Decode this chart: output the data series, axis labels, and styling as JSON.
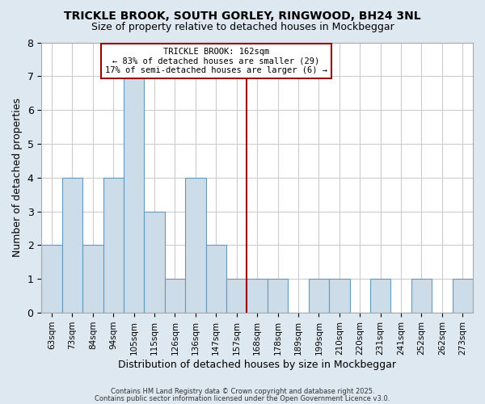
{
  "title1": "TRICKLE BROOK, SOUTH GORLEY, RINGWOOD, BH24 3NL",
  "title2": "Size of property relative to detached houses in Mockbeggar",
  "xlabel": "Distribution of detached houses by size in Mockbeggar",
  "ylabel": "Number of detached properties",
  "bar_labels": [
    "63sqm",
    "73sqm",
    "84sqm",
    "94sqm",
    "105sqm",
    "115sqm",
    "126sqm",
    "136sqm",
    "147sqm",
    "157sqm",
    "168sqm",
    "178sqm",
    "189sqm",
    "199sqm",
    "210sqm",
    "220sqm",
    "231sqm",
    "241sqm",
    "252sqm",
    "262sqm",
    "273sqm"
  ],
  "bar_values": [
    2,
    4,
    2,
    4,
    7,
    3,
    1,
    4,
    2,
    1,
    1,
    1,
    0,
    1,
    1,
    0,
    1,
    0,
    1,
    0,
    1
  ],
  "bar_color": "#ccdce8",
  "bar_edge_color": "#6699bb",
  "marker_color": "#990000",
  "annotation_title": "TRICKLE BROOK: 162sqm",
  "annotation_line1": "← 83% of detached houses are smaller (29)",
  "annotation_line2": "17% of semi-detached houses are larger (6) →",
  "ylim": [
    0,
    8
  ],
  "yticks": [
    0,
    1,
    2,
    3,
    4,
    5,
    6,
    7,
    8
  ],
  "footer1": "Contains HM Land Registry data © Crown copyright and database right 2025.",
  "footer2": "Contains public sector information licensed under the Open Government Licence v3.0.",
  "bg_color": "#dde8f0",
  "plot_bg_color": "#ffffff",
  "grid_color": "#cccccc"
}
